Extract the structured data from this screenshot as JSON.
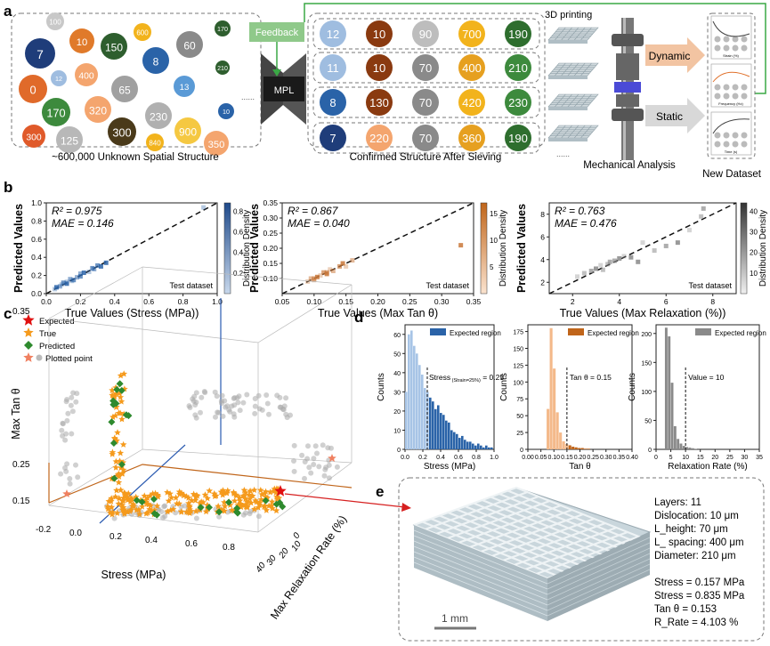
{
  "panels": {
    "a": "a",
    "b": "b",
    "c": "c",
    "d": "d",
    "e": "e"
  },
  "panel_a": {
    "feedback_label": "Feedback",
    "mpl_label": "MPL",
    "printing_label": "3D printing",
    "dynamic_label": "Dynamic",
    "static_label": "Static",
    "caption_unknown": "~600,000 Unknown Spatial Structure",
    "caption_confirmed": "Confirmed Structure After Sieving",
    "caption_mech": "Mechanical Analysis",
    "caption_new": "New Dataset",
    "ellipsis": "......",
    "unknown_circles": [
      {
        "label": "100",
        "color": "#c8c8c8"
      },
      {
        "label": "7",
        "color": "#1f3d7a"
      },
      {
        "label": "10",
        "color": "#e07a2a"
      },
      {
        "label": "150",
        "color": "#2e5e2e"
      },
      {
        "label": "600",
        "color": "#f2b31c"
      },
      {
        "label": "8",
        "color": "#2a63a8"
      },
      {
        "label": "60",
        "color": "#8a8a8a"
      },
      {
        "label": "170",
        "color": "#2e5e2e"
      },
      {
        "label": "0",
        "color": "#e06a2a"
      },
      {
        "label": "12",
        "color": "#9fbde0"
      },
      {
        "label": "400",
        "color": "#f4a56e"
      },
      {
        "label": "65",
        "color": "#a0a0a0"
      },
      {
        "label": "13",
        "color": "#5a9ad6"
      },
      {
        "label": "210",
        "color": "#2e5e2e"
      },
      {
        "label": "170",
        "color": "#3d8a3d"
      },
      {
        "label": "320",
        "color": "#f4a56e"
      },
      {
        "label": "230",
        "color": "#b0b0b0"
      },
      {
        "label": "10",
        "color": "#2a63a8"
      },
      {
        "label": "300",
        "color": "#e05a2a"
      },
      {
        "label": "125",
        "color": "#b8b8b8"
      },
      {
        "label": "300",
        "color": "#4a3a1a"
      },
      {
        "label": "840",
        "color": "#f2b31c"
      },
      {
        "label": "900",
        "color": "#f5c842"
      },
      {
        "label": "350",
        "color": "#f4a56e"
      }
    ],
    "rows": [
      [
        {
          "label": "12",
          "color": "#9fbde0"
        },
        {
          "label": "10",
          "color": "#8a3a10"
        },
        {
          "label": "90",
          "color": "#bdbdbd"
        },
        {
          "label": "700",
          "color": "#f2b31c"
        },
        {
          "label": "190",
          "color": "#2e6e2e"
        }
      ],
      [
        {
          "label": "11",
          "color": "#9fbde0"
        },
        {
          "label": "10",
          "color": "#8a3a10"
        },
        {
          "label": "70",
          "color": "#8a8a8a"
        },
        {
          "label": "400",
          "color": "#e6a020"
        },
        {
          "label": "210",
          "color": "#3d8a3d"
        }
      ],
      [
        {
          "label": "8",
          "color": "#2a63a8"
        },
        {
          "label": "130",
          "color": "#8a3a10"
        },
        {
          "label": "70",
          "color": "#8a8a8a"
        },
        {
          "label": "420",
          "color": "#f2b31c"
        },
        {
          "label": "230",
          "color": "#3d8a3d"
        }
      ],
      [
        {
          "label": "7",
          "color": "#1f3d7a"
        },
        {
          "label": "220",
          "color": "#f4a56e"
        },
        {
          "label": "70",
          "color": "#8a8a8a"
        },
        {
          "label": "360",
          "color": "#e6a020"
        },
        {
          "label": "190",
          "color": "#2e6e2e"
        }
      ]
    ],
    "mini_chart_labels": [
      "Strain (%)",
      "Frequency (Hz)",
      "Time (s)"
    ]
  },
  "chart_data": [
    {
      "type": "scatter",
      "id": "b1",
      "r2": "R² = 0.975",
      "mae": "MAE = 0.146",
      "xlabel": "True Values (Stress (MPa))",
      "ylabel": "Predicted Values",
      "xlim": [
        0,
        1.0
      ],
      "ylim": [
        0,
        1.0
      ],
      "xticks": [
        "0.0",
        "0.2",
        "0.4",
        "0.6",
        "0.8",
        "1.0"
      ],
      "yticks": [
        "0.0",
        "0.2",
        "0.4",
        "0.6",
        "0.8",
        "1.0"
      ],
      "colorbar_label": "Distribution Density",
      "colorbar_ticks": [
        "0.2",
        "0.4",
        "0.6",
        "0.8"
      ],
      "legend": "Test dataset",
      "points": [
        [
          0.05,
          0.05
        ],
        [
          0.08,
          0.08
        ],
        [
          0.1,
          0.12
        ],
        [
          0.12,
          0.11
        ],
        [
          0.15,
          0.14
        ],
        [
          0.18,
          0.18
        ],
        [
          0.2,
          0.19
        ],
        [
          0.22,
          0.23
        ],
        [
          0.25,
          0.24
        ],
        [
          0.28,
          0.27
        ],
        [
          0.3,
          0.31
        ],
        [
          0.35,
          0.34
        ],
        [
          0.12,
          0.13
        ],
        [
          0.14,
          0.16
        ],
        [
          0.16,
          0.15
        ],
        [
          0.06,
          0.07
        ],
        [
          0.09,
          0.1
        ],
        [
          0.2,
          0.22
        ],
        [
          0.27,
          0.28
        ],
        [
          0.32,
          0.3
        ],
        [
          0.92,
          0.95
        ]
      ]
    },
    {
      "type": "scatter",
      "id": "b2",
      "r2": "R² = 0.867",
      "mae": "MAE = 0.040",
      "xlabel": "True Values (Max Tan θ)",
      "ylabel": "Predicted Values",
      "xlim": [
        0.05,
        0.35
      ],
      "ylim": [
        0.05,
        0.35
      ],
      "xticks": [
        "0.05",
        "0.10",
        "0.15",
        "0.20",
        "0.25",
        "0.30",
        "0.35"
      ],
      "yticks": [
        "0.10",
        "0.15",
        "0.20",
        "0.25",
        "0.30",
        "0.35"
      ],
      "colorbar_label": "Distribution Density",
      "colorbar_ticks": [
        "5",
        "10",
        "15"
      ],
      "legend": "Test dataset",
      "points": [
        [
          0.09,
          0.09
        ],
        [
          0.095,
          0.1
        ],
        [
          0.1,
          0.1
        ],
        [
          0.105,
          0.105
        ],
        [
          0.11,
          0.11
        ],
        [
          0.1,
          0.095
        ],
        [
          0.115,
          0.12
        ],
        [
          0.12,
          0.115
        ],
        [
          0.125,
          0.13
        ],
        [
          0.13,
          0.125
        ],
        [
          0.14,
          0.14
        ],
        [
          0.145,
          0.15
        ],
        [
          0.15,
          0.14
        ],
        [
          0.16,
          0.16
        ],
        [
          0.12,
          0.12
        ],
        [
          0.33,
          0.21
        ]
      ]
    },
    {
      "type": "scatter",
      "id": "b3",
      "r2": "R² = 0.763",
      "mae": "MAE = 0.476",
      "xlabel": "True Values (Max Relaxation (%))",
      "ylabel": "Predicted Values",
      "xlim": [
        1,
        9
      ],
      "ylim": [
        1,
        9
      ],
      "xticks": [
        "2",
        "4",
        "6",
        "8"
      ],
      "yticks": [
        "2",
        "4",
        "6",
        "8"
      ],
      "colorbar_label": "Distribution Density",
      "colorbar_ticks": [
        "10",
        "20",
        "30",
        "40"
      ],
      "legend": "Test dataset",
      "points": [
        [
          2.2,
          2.5
        ],
        [
          2.5,
          2.8
        ],
        [
          2.8,
          3
        ],
        [
          3,
          3.2
        ],
        [
          3.2,
          3.5
        ],
        [
          3.5,
          3.6
        ],
        [
          3.8,
          3.9
        ],
        [
          4,
          4.1
        ],
        [
          4.2,
          4.3
        ],
        [
          3.3,
          3.1
        ],
        [
          3.6,
          3.8
        ],
        [
          4.5,
          4.2
        ],
        [
          5,
          5.5
        ],
        [
          5.5,
          4.8
        ],
        [
          6,
          5.2
        ],
        [
          6.5,
          5.5
        ],
        [
          7,
          6.6
        ],
        [
          7.5,
          7.8
        ],
        [
          7.6,
          8.5
        ],
        [
          4.8,
          3.8
        ]
      ]
    },
    {
      "type": "bar",
      "id": "d1",
      "legend": "Expected region",
      "xlabel": "Stress (MPa)",
      "ylabel": "Counts",
      "xlim": [
        0,
        1.0
      ],
      "ylim": [
        0,
        65
      ],
      "xticks": [
        "0.0",
        "0.2",
        "0.4",
        "0.6",
        "0.8",
        "1.0"
      ],
      "yticks": [
        "0",
        "10",
        "20",
        "30",
        "40",
        "50",
        "60"
      ],
      "annotation": "Stress (Strain=25%) = 0.25",
      "annotation_main": "Stress",
      "annotation_sub": "(Strain=25%)",
      "annotation_val": " = 0.25",
      "threshold": 0.25,
      "bin_width": 0.03,
      "bins": [
        0.0,
        0.03,
        0.06,
        0.09,
        0.12,
        0.15,
        0.18,
        0.21,
        0.24,
        0.27,
        0.3,
        0.33,
        0.36,
        0.39,
        0.42,
        0.45,
        0.48,
        0.51,
        0.54,
        0.57,
        0.6,
        0.63,
        0.66,
        0.69,
        0.72,
        0.75,
        0.78,
        0.81,
        0.84,
        0.87,
        0.9,
        0.93,
        0.96
      ],
      "values": [
        30,
        60,
        62,
        54,
        50,
        44,
        39,
        32,
        30,
        27,
        25,
        21,
        23,
        19,
        18,
        15,
        14,
        10,
        9,
        8,
        6,
        7,
        5,
        4,
        4,
        3,
        2,
        3,
        2,
        1,
        2,
        1,
        1
      ]
    },
    {
      "type": "bar",
      "id": "d2",
      "legend": "Expected region",
      "xlabel": "Tan θ",
      "ylabel": "Counts",
      "xlim": [
        0,
        0.4
      ],
      "ylim": [
        0,
        185
      ],
      "xticks": [
        "0.00",
        "0.05",
        "0.10",
        "0.15",
        "0.20",
        "0.25",
        "0.30",
        "0.35",
        "0.40"
      ],
      "yticks": [
        "0",
        "25",
        "50",
        "75",
        "100",
        "125",
        "150",
        "175"
      ],
      "annotation": "Tan θ = 0.15",
      "threshold": 0.15,
      "bin_width": 0.012,
      "bins": [
        0.072,
        0.084,
        0.096,
        0.108,
        0.12,
        0.132,
        0.144,
        0.156,
        0.168,
        0.18,
        0.192,
        0.204,
        0.216,
        0.228
      ],
      "values": [
        60,
        180,
        120,
        55,
        25,
        12,
        8,
        6,
        4,
        3,
        2,
        2,
        1,
        1
      ]
    },
    {
      "type": "bar",
      "id": "d3",
      "legend": "Expected region",
      "xlabel": "Relaxation Rate (%)",
      "ylabel": "Counts",
      "xlim": [
        0,
        35
      ],
      "ylim": [
        0,
        215
      ],
      "xticks": [
        "0",
        "5",
        "10",
        "15",
        "20",
        "25",
        "30",
        "35"
      ],
      "yticks": [
        "0",
        "50",
        "100",
        "150",
        "200"
      ],
      "annotation": "Value = 10",
      "threshold": 10,
      "bin_width": 1,
      "bins": [
        3,
        4,
        5,
        6,
        7,
        8,
        9,
        10,
        11,
        12,
        13
      ],
      "values": [
        210,
        195,
        115,
        40,
        18,
        10,
        6,
        4,
        3,
        2,
        1
      ]
    }
  ],
  "panel_c": {
    "legend": [
      {
        "label": "Expected",
        "color": "#e01010",
        "shape": "star"
      },
      {
        "label": "True",
        "color": "#f59a1c",
        "shape": "star"
      },
      {
        "label": "Predicted",
        "color": "#2e8a2e",
        "shape": "diamond"
      },
      {
        "label": "Plotted point",
        "color": "#f08060",
        "shape": "star-circle"
      }
    ],
    "z_label": "Max Tan θ",
    "z_ticks": [
      "0.35",
      "0.25",
      "0.15"
    ],
    "x_label": "Stress (MPa)",
    "x_ticks": [
      "-0.2",
      "0.0",
      "0.2",
      "0.4",
      "0.6",
      "0.8"
    ],
    "y_label": "Max Relaxation Rate (%)",
    "y_ticks": [
      "10",
      "20",
      "30",
      "40"
    ],
    "y_ticks_extra": [
      "0"
    ]
  },
  "panel_e": {
    "specs": [
      "Layers: 11",
      "Dislocation: 10 μm",
      "L_height: 70 μm",
      "L_ spacing: 400 μm",
      "Diameter: 210 μm"
    ],
    "results": [
      "Stress = 0.157 MPa",
      "Stress = 0.835 MPa",
      "Tan θ = 0.153",
      "R_Rate = 4.103 %"
    ],
    "scale_label": "1 mm"
  }
}
